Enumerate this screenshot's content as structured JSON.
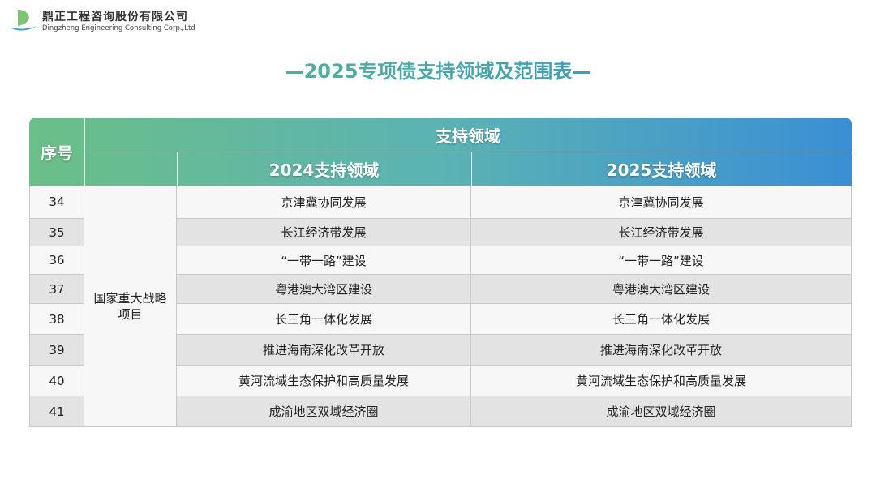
{
  "logo": {
    "name_cn": "鼎正工程咨询股份有限公司",
    "name_en": "Dingzheng Engineering Consulting Corp.,Ltd"
  },
  "title": "—2025专项债支持领域及范围表—",
  "table": {
    "headers": {
      "index": "序号",
      "group": "支持领域",
      "col2024": "2024支持领域",
      "col2025": "2025支持领域"
    },
    "category": "国家重大战略项目",
    "rows": [
      {
        "no": "34",
        "y2024": "京津冀协同发展",
        "y2025": "京津冀协同发展"
      },
      {
        "no": "35",
        "y2024": "长江经济带发展",
        "y2025": "长江经济带发展"
      },
      {
        "no": "36",
        "y2024": "“一带一路”建设",
        "y2025": "“一带一路”建设"
      },
      {
        "no": "37",
        "y2024": "粤港澳大湾区建设",
        "y2025": "粤港澳大湾区建设"
      },
      {
        "no": "38",
        "y2024": "长三角一体化发展",
        "y2025": "长三角一体化发展"
      },
      {
        "no": "39",
        "y2024": "推进海南深化改革开放",
        "y2025": "推进海南深化改革开放"
      },
      {
        "no": "40",
        "y2024": "黄河流域生态保护和高质量发展",
        "y2025": "黄河流域生态保护和高质量发展"
      },
      {
        "no": "41",
        "y2024": "成渝地区双域经济圈",
        "y2025": "成渝地区双域经济圈"
      }
    ]
  }
}
